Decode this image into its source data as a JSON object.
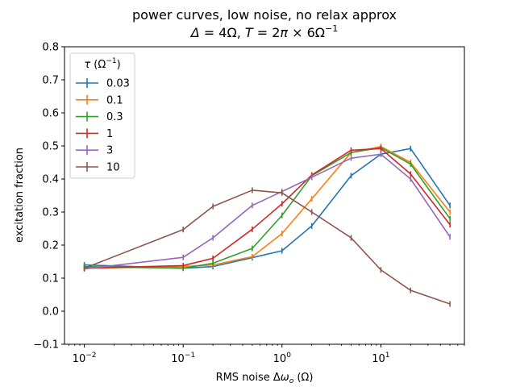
{
  "chart_data": {
    "type": "line",
    "title_line1": "power curves, low noise, no relax approx",
    "title_line2_parts": [
      "Δ",
      " = 4Ω, ",
      "T",
      " = 2",
      "π",
      " × 6Ω",
      "−1"
    ],
    "xlabel_parts": [
      "RMS noise Δ",
      "ω",
      "o",
      " (Ω)"
    ],
    "ylabel": "excitation fraction",
    "xscale": "log",
    "xlim": [
      0.0063,
      70
    ],
    "ylim": [
      -0.1,
      0.8
    ],
    "yticks": [
      "−0.1",
      "0.0",
      "0.1",
      "0.2",
      "0.3",
      "0.4",
      "0.5",
      "0.6",
      "0.7",
      "0.8"
    ],
    "ytick_values": [
      -0.1,
      0.0,
      0.1,
      0.2,
      0.3,
      0.4,
      0.5,
      0.6,
      0.7,
      0.8
    ],
    "xticks": [
      {
        "value": 0.01,
        "base": "10",
        "exp": "−2"
      },
      {
        "value": 0.1,
        "base": "10",
        "exp": "−1"
      },
      {
        "value": 1,
        "base": "10",
        "exp": "0"
      },
      {
        "value": 10,
        "base": "10",
        "exp": "1"
      }
    ],
    "legend_title_parts": [
      "τ",
      " (Ω",
      "−1",
      ")"
    ],
    "legend_position": "top-left",
    "grid": false,
    "x": [
      0.01,
      0.1,
      0.2,
      0.5,
      1,
      2,
      5,
      10,
      20,
      50
    ],
    "series": [
      {
        "name": "0.03",
        "color": "#1f77b4",
        "values": [
          0.14,
          0.13,
          0.135,
          0.162,
          0.183,
          0.258,
          0.41,
          0.475,
          0.492,
          0.32
        ]
      },
      {
        "name": "0.1",
        "color": "#ff7f0e",
        "values": [
          0.13,
          0.135,
          0.14,
          0.165,
          0.235,
          0.34,
          0.48,
          0.498,
          0.45,
          0.3
        ]
      },
      {
        "name": "0.3",
        "color": "#2ca02c",
        "values": [
          0.135,
          0.13,
          0.145,
          0.19,
          0.29,
          0.41,
          0.48,
          0.495,
          0.445,
          0.28
        ]
      },
      {
        "name": "1",
        "color": "#d62728",
        "values": [
          0.13,
          0.138,
          0.16,
          0.248,
          0.325,
          0.412,
          0.487,
          0.492,
          0.415,
          0.262
        ]
      },
      {
        "name": "3",
        "color": "#9467bd",
        "values": [
          0.128,
          0.163,
          0.222,
          0.32,
          0.362,
          0.405,
          0.463,
          0.475,
          0.4,
          0.225
        ]
      },
      {
        "name": "10",
        "color": "#8c564b",
        "values": [
          0.13,
          0.247,
          0.317,
          0.366,
          0.358,
          0.3,
          0.222,
          0.125,
          0.063,
          0.022
        ]
      }
    ]
  }
}
